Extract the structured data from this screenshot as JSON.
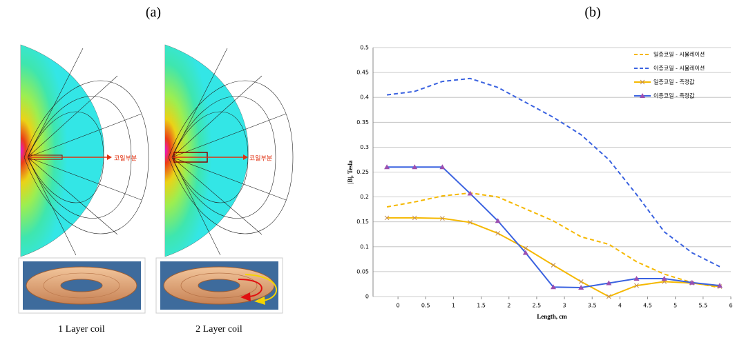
{
  "panel_a": {
    "label": "(a)",
    "arrow_labels": [
      "코일부분",
      "코일부분"
    ],
    "captions": [
      "1 Layer coil",
      "2 Layer coil"
    ]
  },
  "chart_data": {
    "type": "line",
    "label": "(b)",
    "x_label": "Length, cm",
    "y_label": "|B|, Tesla",
    "x": [
      -0.2,
      0.3,
      0.8,
      1.3,
      1.8,
      2.3,
      2.8,
      3.3,
      3.8,
      4.3,
      4.8,
      5.3,
      5.8
    ],
    "xlim": [
      -0.45,
      6
    ],
    "xticks": [
      0,
      0.5,
      1,
      1.5,
      2,
      2.5,
      3,
      3.5,
      4,
      4.5,
      5,
      5.5,
      6
    ],
    "ylim": [
      0,
      0.5
    ],
    "yticks": [
      0,
      0.05,
      0.1,
      0.15,
      0.2,
      0.25,
      0.3,
      0.35,
      0.4,
      0.45,
      0.5
    ],
    "grid": true,
    "legend": "top-right",
    "series": [
      {
        "name": "일층코일 - 시뮬레이션",
        "color": "#f5b800",
        "style": "dashed",
        "marker": "none",
        "values": [
          0.18,
          0.19,
          0.202,
          0.208,
          0.2,
          0.176,
          0.152,
          0.12,
          0.105,
          0.07,
          0.045,
          0.028,
          0.018
        ]
      },
      {
        "name": "이층코일 - 시뮬레이션",
        "color": "#3a62e0",
        "style": "dashed",
        "marker": "none",
        "values": [
          0.405,
          0.412,
          0.432,
          0.438,
          0.42,
          0.39,
          0.36,
          0.325,
          0.275,
          0.205,
          0.13,
          0.088,
          0.06
        ]
      },
      {
        "name": "일층코일 - 측정값",
        "color": "#f5b800",
        "style": "solid",
        "marker": "x",
        "values": [
          0.158,
          0.158,
          0.157,
          0.149,
          0.127,
          0.097,
          0.063,
          0.03,
          0.0,
          0.022,
          0.03,
          0.027,
          0.02
        ]
      },
      {
        "name": "이층코일 - 측정값",
        "color": "#3a62e0",
        "style": "solid",
        "marker": "triangle",
        "values": [
          0.26,
          0.26,
          0.26,
          0.207,
          0.152,
          0.088,
          0.019,
          0.018,
          0.027,
          0.036,
          0.036,
          0.028,
          0.022
        ]
      }
    ]
  }
}
